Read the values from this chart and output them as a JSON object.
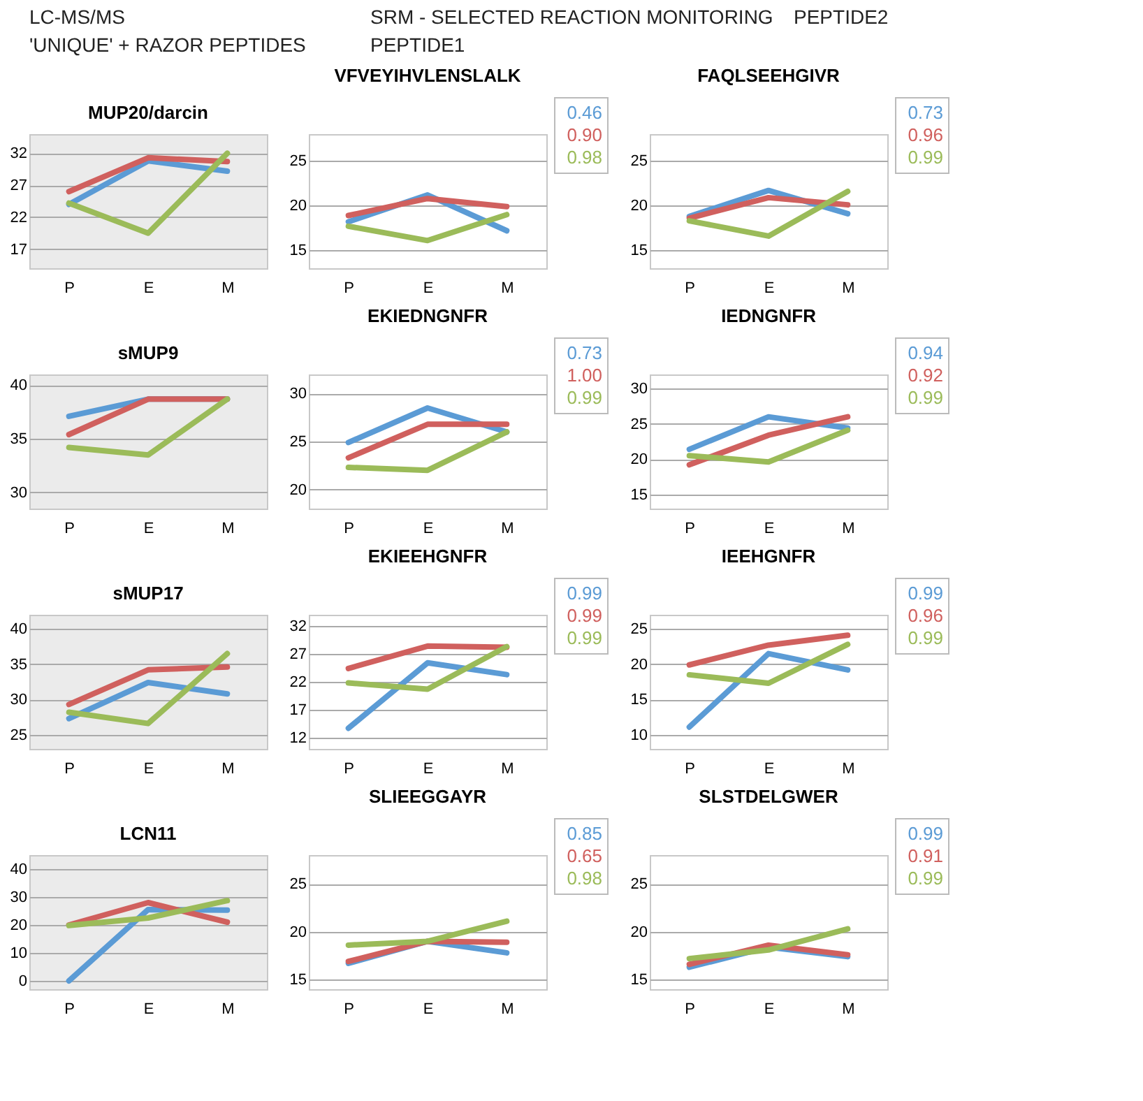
{
  "chart_data": [
    {
      "type": "other",
      "annotations": [
        "LC-MS/MS",
        "'UNIQUE' + RAZOR PEPTIDES"
      ]
    },
    {
      "type": "other",
      "annotations": [
        "SRM - SELECTED REACTION MONITORING",
        "PEPTIDE1"
      ]
    },
    {
      "type": "other",
      "annotations": [
        "PEPTIDE2"
      ]
    },
    {
      "type": "line",
      "title": "MUP20/darcin",
      "categories": [
        "P",
        "E",
        "M"
      ],
      "ylim": [
        14,
        35
      ],
      "yticks": [
        17,
        22,
        27,
        32
      ],
      "grid": "y",
      "legend": false,
      "series": [
        {
          "color": "#5b9bd5",
          "values": [
            24.0,
            30.8,
            29.2
          ]
        },
        {
          "color": "#d0605e",
          "values": [
            26.0,
            31.3,
            30.7
          ]
        },
        {
          "color": "#9bbb59",
          "values": [
            24.2,
            19.5,
            32.0
          ]
        }
      ]
    },
    {
      "type": "line",
      "title": "VFVEYIHVLENSLALK",
      "categories": [
        "P",
        "E",
        "M"
      ],
      "ylim": [
        13,
        28
      ],
      "yticks": [
        15,
        20,
        25
      ],
      "grid": "y",
      "legend": false,
      "annotations": [
        "0.46",
        "0.90",
        "0.98"
      ],
      "series": [
        {
          "color": "#5b9bd5",
          "values": [
            18.2,
            21.2,
            17.2
          ]
        },
        {
          "color": "#d0605e",
          "values": [
            18.9,
            20.8,
            19.9
          ]
        },
        {
          "color": "#9bbb59",
          "values": [
            17.7,
            16.1,
            19.0
          ]
        }
      ]
    },
    {
      "type": "line",
      "title": "FAQLSEEHGIVR",
      "categories": [
        "P",
        "E",
        "M"
      ],
      "ylim": [
        13,
        28
      ],
      "yticks": [
        15,
        20,
        25
      ],
      "grid": "y",
      "legend": false,
      "annotations": [
        "0.73",
        "0.96",
        "0.99"
      ],
      "series": [
        {
          "color": "#5b9bd5",
          "values": [
            18.8,
            21.7,
            19.1
          ]
        },
        {
          "color": "#d0605e",
          "values": [
            18.6,
            20.9,
            20.1
          ]
        },
        {
          "color": "#9bbb59",
          "values": [
            18.3,
            16.6,
            21.6
          ]
        }
      ]
    },
    {
      "type": "line",
      "title": "sMUP9",
      "categories": [
        "P",
        "E",
        "M"
      ],
      "ylim": [
        28.5,
        41
      ],
      "yticks": [
        30,
        35,
        40
      ],
      "grid": "y",
      "legend": false,
      "series": [
        {
          "color": "#5b9bd5",
          "values": [
            37.1,
            38.7,
            38.7
          ]
        },
        {
          "color": "#d0605e",
          "values": [
            35.4,
            38.7,
            38.7
          ]
        },
        {
          "color": "#9bbb59",
          "values": [
            34.2,
            33.5,
            38.7
          ]
        }
      ]
    },
    {
      "type": "line",
      "title": "EKIEDNGNFR",
      "categories": [
        "P",
        "E",
        "M"
      ],
      "ylim": [
        18,
        32
      ],
      "yticks": [
        20,
        25,
        30
      ],
      "grid": "y",
      "legend": false,
      "annotations": [
        "0.73",
        "1.00",
        "0.99"
      ],
      "series": [
        {
          "color": "#5b9bd5",
          "values": [
            24.9,
            28.5,
            26.0
          ]
        },
        {
          "color": "#d0605e",
          "values": [
            23.3,
            26.8,
            26.8
          ]
        },
        {
          "color": "#9bbb59",
          "values": [
            22.3,
            22.0,
            26.0
          ]
        }
      ]
    },
    {
      "type": "line",
      "title": "IEDNGNFR",
      "categories": [
        "P",
        "E",
        "M"
      ],
      "ylim": [
        13,
        32
      ],
      "yticks": [
        15,
        20,
        25,
        30
      ],
      "grid": "y",
      "legend": false,
      "annotations": [
        "0.94",
        "0.92",
        "0.99"
      ],
      "series": [
        {
          "color": "#5b9bd5",
          "values": [
            21.4,
            26.0,
            24.4
          ]
        },
        {
          "color": "#d0605e",
          "values": [
            19.2,
            23.4,
            26.0
          ]
        },
        {
          "color": "#9bbb59",
          "values": [
            20.5,
            19.6,
            24.1
          ]
        }
      ]
    },
    {
      "type": "line",
      "title": "sMUP17",
      "categories": [
        "P",
        "E",
        "M"
      ],
      "ylim": [
        23,
        42
      ],
      "yticks": [
        25,
        30,
        35,
        40
      ],
      "grid": "y",
      "legend": false,
      "series": [
        {
          "color": "#5b9bd5",
          "values": [
            27.3,
            32.4,
            30.8
          ]
        },
        {
          "color": "#d0605e",
          "values": [
            29.3,
            34.2,
            34.6
          ]
        },
        {
          "color": "#9bbb59",
          "values": [
            28.2,
            26.6,
            36.5
          ]
        }
      ]
    },
    {
      "type": "line",
      "title": "EKIEEHGNFR",
      "categories": [
        "P",
        "E",
        "M"
      ],
      "ylim": [
        10,
        34
      ],
      "yticks": [
        12,
        17,
        22,
        27,
        32
      ],
      "grid": "y",
      "legend": false,
      "annotations": [
        "0.99",
        "0.99",
        "0.99"
      ],
      "series": [
        {
          "color": "#5b9bd5",
          "values": [
            13.7,
            25.4,
            23.3
          ]
        },
        {
          "color": "#d0605e",
          "values": [
            24.4,
            28.4,
            28.2
          ]
        },
        {
          "color": "#9bbb59",
          "values": [
            21.8,
            20.7,
            28.3
          ]
        }
      ]
    },
    {
      "type": "line",
      "title": "IEEHGNFR",
      "categories": [
        "P",
        "E",
        "M"
      ],
      "ylim": [
        8,
        27
      ],
      "yticks": [
        10,
        15,
        20,
        25
      ],
      "grid": "y",
      "legend": false,
      "annotations": [
        "0.99",
        "0.96",
        "0.99"
      ],
      "series": [
        {
          "color": "#5b9bd5",
          "values": [
            11.1,
            21.5,
            19.2
          ]
        },
        {
          "color": "#d0605e",
          "values": [
            19.9,
            22.7,
            24.1
          ]
        },
        {
          "color": "#9bbb59",
          "values": [
            18.5,
            17.3,
            22.8
          ]
        }
      ]
    },
    {
      "type": "line",
      "title": "LCN11",
      "categories": [
        "P",
        "E",
        "M"
      ],
      "ylim": [
        -3,
        45
      ],
      "yticks": [
        0,
        10,
        20,
        30,
        40
      ],
      "grid": "y",
      "legend": false,
      "series": [
        {
          "color": "#5b9bd5",
          "values": [
            0,
            25.5,
            25.3
          ]
        },
        {
          "color": "#d0605e",
          "values": [
            20.0,
            28.0,
            21.0
          ]
        },
        {
          "color": "#9bbb59",
          "values": [
            19.8,
            22.5,
            28.7
          ]
        }
      ]
    },
    {
      "type": "line",
      "title": "SLIEEGGAYR",
      "categories": [
        "P",
        "E",
        "M"
      ],
      "ylim": [
        14,
        28
      ],
      "yticks": [
        15,
        20,
        25
      ],
      "grid": "y",
      "legend": false,
      "annotations": [
        "0.85",
        "0.65",
        "0.98"
      ],
      "series": [
        {
          "color": "#5b9bd5",
          "values": [
            16.7,
            19.0,
            17.8
          ]
        },
        {
          "color": "#d0605e",
          "values": [
            16.9,
            19.0,
            18.9
          ]
        },
        {
          "color": "#9bbb59",
          "values": [
            18.6,
            19.0,
            21.1
          ]
        }
      ]
    },
    {
      "type": "line",
      "title": "SLSTDELGWER",
      "categories": [
        "P",
        "E",
        "M"
      ],
      "ylim": [
        14,
        28
      ],
      "yticks": [
        15,
        20,
        25
      ],
      "grid": "y",
      "legend": false,
      "annotations": [
        "0.99",
        "0.91",
        "0.99"
      ],
      "series": [
        {
          "color": "#5b9bd5",
          "values": [
            16.3,
            18.4,
            17.4
          ]
        },
        {
          "color": "#d0605e",
          "values": [
            16.6,
            18.6,
            17.6
          ]
        },
        {
          "color": "#9bbb59",
          "values": [
            17.2,
            18.1,
            20.3
          ]
        }
      ]
    }
  ]
}
